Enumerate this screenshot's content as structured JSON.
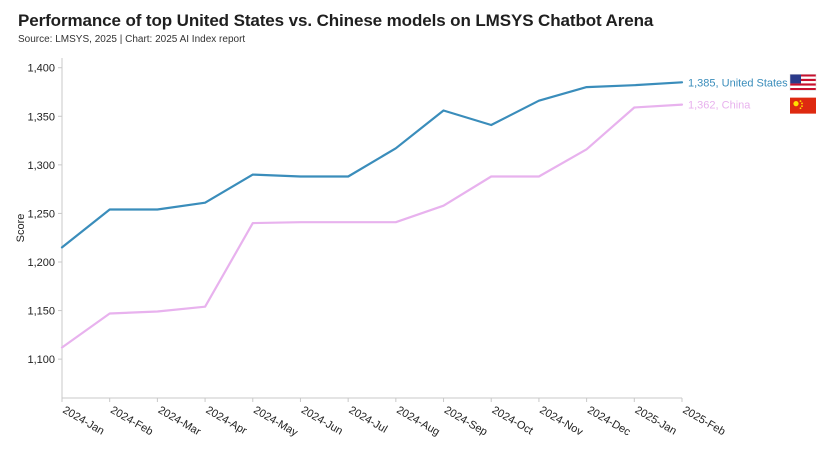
{
  "title": "Performance of top United States vs. Chinese models on LMSYS Chatbot Arena",
  "subtitle": "Source: LMSYS, 2025 | Chart: 2025 AI Index report",
  "chart_data": {
    "type": "line",
    "categories": [
      "2024-Jan",
      "2024-Feb",
      "2024-Mar",
      "2024-Apr",
      "2024-May",
      "2024-Jun",
      "2024-Jul",
      "2024-Aug",
      "2024-Sep",
      "2024-Oct",
      "2024-Nov",
      "2024-Dec",
      "2025-Jan",
      "2025-Feb"
    ],
    "series": [
      {
        "name": "United States",
        "color": "#3a8dbb",
        "values": [
          1215,
          1254,
          1254,
          1261,
          1290,
          1288,
          1288,
          1317,
          1356,
          1341,
          1366,
          1380,
          1382,
          1385
        ],
        "end_label": "1,385, United States",
        "flag_icon": "us-flag-icon"
      },
      {
        "name": "China",
        "color": "#e8b2ee",
        "values": [
          1112,
          1147,
          1149,
          1154,
          1240,
          1241,
          1241,
          1241,
          1258,
          1288,
          1288,
          1316,
          1359,
          1362
        ],
        "end_label": "1,362, China",
        "flag_icon": "china-flag-icon"
      }
    ],
    "ylabel": "Score",
    "xlabel": "",
    "ylim": [
      1060,
      1410
    ],
    "yticks": [
      1100,
      1150,
      1200,
      1250,
      1300,
      1350,
      1400
    ],
    "ytick_labels": [
      "1,100",
      "1,150",
      "1,200",
      "1,250",
      "1,300",
      "1,350",
      "1,400"
    ],
    "grid": false
  }
}
